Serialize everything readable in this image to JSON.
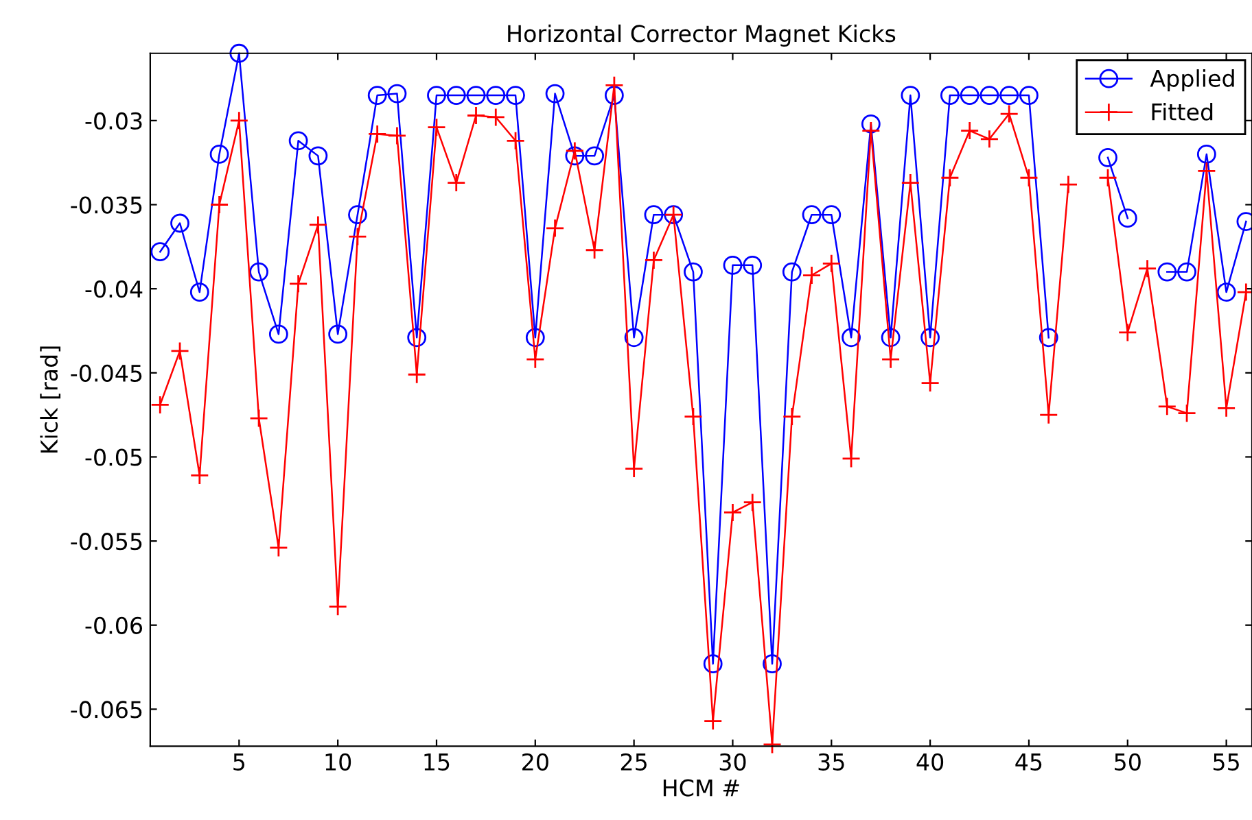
{
  "chart_data": {
    "type": "line",
    "title": "Horizontal Corrector Magnet Kicks",
    "xlabel": "HCM #",
    "ylabel": "Kick [rad]",
    "x": [
      1,
      2,
      3,
      4,
      5,
      6,
      7,
      8,
      9,
      10,
      11,
      12,
      13,
      14,
      15,
      16,
      17,
      18,
      19,
      20,
      21,
      22,
      23,
      24,
      25,
      26,
      27,
      28,
      29,
      30,
      31,
      32,
      33,
      34,
      35,
      36,
      37,
      38,
      39,
      40,
      41,
      42,
      43,
      44,
      45,
      46,
      47,
      48,
      49,
      50,
      51,
      52,
      53,
      54,
      55,
      56
    ],
    "series": [
      {
        "name": "Applied",
        "color": "#0000ff",
        "marker": "circle",
        "values": [
          -0.0378,
          -0.0361,
          -0.0402,
          -0.032,
          -0.026,
          -0.039,
          -0.0427,
          -0.0312,
          -0.0321,
          -0.0427,
          -0.0356,
          -0.0285,
          -0.0284,
          -0.0429,
          -0.0285,
          -0.0285,
          -0.0285,
          -0.0285,
          -0.0285,
          -0.0429,
          -0.0284,
          -0.0321,
          -0.0321,
          -0.0285,
          -0.0429,
          -0.0356,
          -0.0356,
          -0.039,
          -0.0623,
          -0.0386,
          -0.0386,
          -0.0623,
          -0.039,
          -0.0356,
          -0.0356,
          -0.0429,
          -0.0302,
          -0.0429,
          -0.0285,
          -0.0429,
          -0.0285,
          -0.0285,
          -0.0285,
          -0.0285,
          -0.0285,
          -0.0429,
          null,
          null,
          -0.0322,
          -0.0358,
          null,
          -0.039,
          -0.039,
          -0.032,
          -0.0402,
          -0.036
        ]
      },
      {
        "name": "Fitted",
        "color": "#ff0000",
        "marker": "cross",
        "values": [
          -0.0469,
          -0.0437,
          -0.0511,
          -0.035,
          -0.03,
          -0.0477,
          -0.0554,
          -0.0397,
          -0.0362,
          -0.0589,
          -0.0369,
          -0.0308,
          -0.0309,
          -0.0451,
          -0.0304,
          -0.0337,
          -0.0297,
          -0.0298,
          -0.0312,
          -0.0442,
          -0.0364,
          -0.0318,
          -0.0377,
          -0.0279,
          -0.0507,
          -0.0383,
          -0.0356,
          -0.0476,
          -0.0657,
          -0.0533,
          -0.0527,
          -0.0671,
          -0.0476,
          -0.0392,
          -0.0385,
          -0.0501,
          -0.0306,
          -0.0442,
          -0.0337,
          -0.0456,
          -0.0334,
          -0.0306,
          -0.0311,
          -0.0296,
          -0.0334,
          -0.0475,
          -0.0338,
          null,
          -0.0334,
          -0.0426,
          -0.0388,
          -0.047,
          -0.0474,
          -0.033,
          -0.0471,
          -0.0402
        ]
      }
    ],
    "xlim": [
      0.5,
      56.3
    ],
    "ylim": [
      -0.0672,
      -0.026
    ],
    "xticks": [
      5,
      10,
      15,
      20,
      25,
      30,
      35,
      40,
      45,
      50,
      55
    ],
    "yticks": [
      -0.065,
      -0.06,
      -0.055,
      -0.05,
      -0.045,
      -0.04,
      -0.035,
      -0.03
    ],
    "legend": "top right",
    "grid": false,
    "line_style": "solid"
  }
}
